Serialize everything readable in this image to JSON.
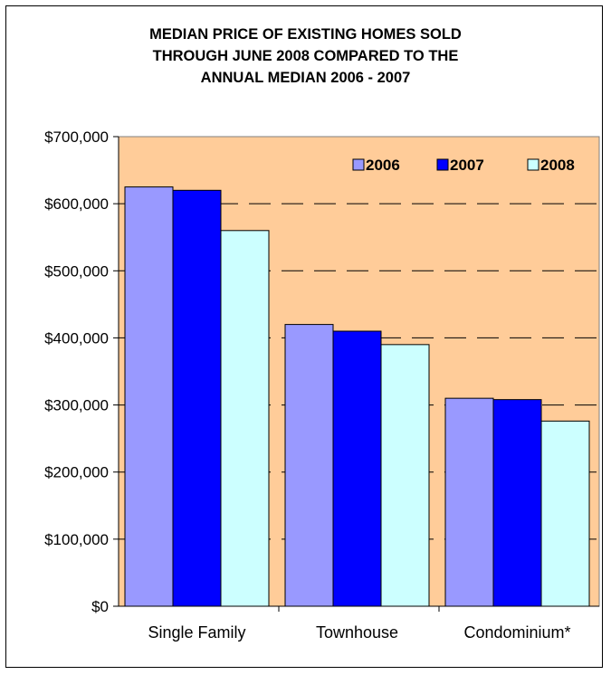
{
  "chart_data": {
    "type": "bar",
    "title_lines": [
      "MEDIAN PRICE OF EXISTING HOMES SOLD",
      "THROUGH JUNE 2008 COMPARED TO THE",
      "ANNUAL MEDIAN 2006 - 2007"
    ],
    "categories": [
      "Single Family",
      "Townhouse",
      "Condominium*"
    ],
    "series": [
      {
        "name": "2006",
        "color": "#9999ff",
        "values": [
          625000,
          420000,
          310000
        ]
      },
      {
        "name": "2007",
        "color": "#0000ff",
        "values": [
          620000,
          410000,
          308000
        ]
      },
      {
        "name": "2008",
        "color": "#ccffff",
        "values": [
          560000,
          390000,
          276000
        ]
      }
    ],
    "ylim": [
      0,
      700000
    ],
    "yticks": [
      0,
      100000,
      200000,
      300000,
      400000,
      500000,
      600000,
      700000
    ],
    "ytick_labels": [
      "$0",
      "$100,000",
      "$200,000",
      "$300,000",
      "$400,000",
      "$500,000",
      "$600,000",
      "$700,000"
    ],
    "grid": "dashed horizontal",
    "legend_position": "top-right",
    "plot_background": "#ffcc99",
    "xlabel": "",
    "ylabel": ""
  }
}
